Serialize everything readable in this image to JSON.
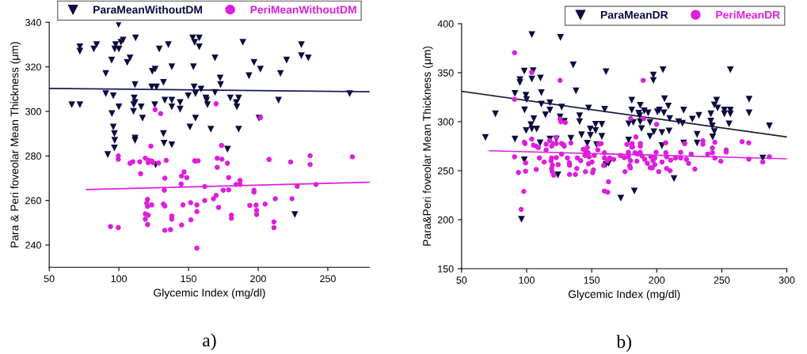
{
  "chart_data": [
    {
      "type": "scatter",
      "xlabel": "Glycemic Index (mg/dl)",
      "ylabel": "Para & Peri foveolar Mean Thickness (μm)",
      "xlim": [
        50,
        280
      ],
      "xticks": [
        50,
        100,
        150,
        200,
        250
      ],
      "ylim": [
        230,
        340
      ],
      "yticks": [
        240,
        260,
        280,
        300,
        320,
        340
      ],
      "grid": false,
      "legend": "top",
      "annotations": [
        "a)"
      ],
      "series": [
        {
          "name": "ParaMeanWithoutDM",
          "color": "#0b0b3f",
          "marker": "triangle",
          "x": [
            66.2,
            72,
            72,
            72,
            82,
            84,
            90.6,
            90.6,
            92,
            94.8,
            96,
            95,
            96,
            96.8,
            97,
            96.8,
            97.7,
            97,
            99.8,
            100,
            100,
            101.5,
            103,
            108,
            106,
            112,
            111.6,
            111,
            110.7,
            110.5,
            111.6,
            111.6,
            111.6,
            116,
            117,
            125.8,
            124,
            126,
            123.6,
            127,
            126.4,
            129,
            132,
            133,
            132,
            132.4,
            135.5,
            138,
            138,
            138,
            138,
            144,
            144,
            149.8,
            151,
            153,
            153.5,
            155,
            154.4,
            157.7,
            157.7,
            154,
            155,
            159,
            169,
            172.7,
            173,
            169,
            162.5,
            163.6,
            163,
            166,
            189,
            197,
            201.6,
            193.4,
            216,
            220.4,
            231,
            231,
            236,
            180,
            186,
            184.3,
            184.7,
            186,
            178,
            200.6,
            214.6,
            226.3,
            265.7
          ],
          "values": [
            303,
            303,
            329,
            327,
            328,
            330,
            317,
            308,
            280.6,
            323,
            307,
            299,
            293,
            290,
            287,
            283.6,
            330,
            328,
            339,
            328,
            302,
            331,
            332,
            324,
            322,
            333,
            312,
            306,
            303,
            300,
            304,
            288,
            287,
            302,
            297,
            303,
            318,
            319,
            311,
            311,
            276,
            328,
            313,
            305,
            290,
            285.7,
            330,
            320,
            305,
            302,
            285,
            304,
            301,
            307,
            293,
            333,
            320,
            297,
            331,
            333,
            329,
            311,
            308,
            310,
            324,
            315,
            312,
            308.5,
            306,
            303,
            305,
            292,
            331,
            322,
            319,
            316,
            317,
            323,
            330,
            325,
            324,
            306,
            306,
            304,
            302,
            292,
            283,
            297,
            305,
            253.7,
            308
          ]
        },
        {
          "name": "PeriMeanWithoutDM",
          "color": "#dd1fdd",
          "marker": "circle",
          "x": [
            126,
            130,
            123,
            99.6,
            99.6,
            108,
            110,
            115,
            115.6,
            119,
            121.6,
            121,
            123.6,
            124.4,
            128.5,
            134,
            133,
            132.6,
            145,
            146.8,
            148.7,
            144.7,
            120.6,
            120,
            120.6,
            123.6,
            119,
            121,
            119,
            120.6,
            94,
            99.6,
            132,
            133,
            138,
            138,
            133,
            137,
            146,
            145,
            151.5,
            151.7,
            156,
            156,
            156,
            155,
            169.8,
            201.7,
            173.7,
            170.6,
            174,
            177.9,
            154.4,
            156.9,
            170.6,
            178.8,
            187,
            184.2,
            187,
            161.6,
            174.9,
            178.8,
            169.8,
            167.9,
            161.6,
            197,
            197,
            171.6,
            180.8,
            180.8,
            194,
            198.5,
            198.9,
            198.9,
            205,
            212.3,
            224.3,
            211.3,
            211.3,
            207.8,
            223.3,
            237.3,
            237.3,
            267.6,
            228,
            241.5
          ],
          "values": [
            300.8,
            299,
            284.4,
            280,
            278.5,
            276.7,
            277.4,
            277.4,
            272,
            279,
            278,
            277,
            277.7,
            277,
            276.8,
            278,
            270,
            264.6,
            271,
            272.8,
            270.3,
            267.4,
            260.5,
            258.8,
            257.3,
            258,
            254,
            253.4,
            251.6,
            249.2,
            248.3,
            247.8,
            258.4,
            257.5,
            253,
            251.6,
            246.6,
            246.9,
            258,
            249,
            259,
            251.3,
            258,
            255,
            238.6,
            277.7,
            303.4,
            297.2,
            284.7,
            279,
            278.5,
            276.7,
            277.8,
            277.8,
            274.9,
            270.3,
            269,
            267.2,
            267.2,
            266.3,
            264.6,
            264.8,
            262.3,
            260.8,
            260,
            264.6,
            263.7,
            256.9,
            253.4,
            252,
            257.8,
            257.9,
            255.5,
            253.7,
            258.4,
            260.8,
            260.8,
            250.4,
            247.8,
            278.4,
            277.3,
            280.1,
            276.1,
            279.6,
            266.4,
            267.2
          ]
        },
        {
          "type": "line",
          "color": "#1a1a5a",
          "x": [
            50,
            280
          ],
          "values": [
            310.3,
            308.8
          ]
        },
        {
          "type": "line",
          "color": "#dd1fdd",
          "x": [
            76.7,
            280
          ],
          "values": [
            264.9,
            268.2
          ]
        }
      ]
    },
    {
      "type": "scatter",
      "xlabel": "Glycemic Index (mg/dl)",
      "ylabel": "Para&Peri foveolar Mean Thickness (μm)",
      "xlim": [
        50,
        300
      ],
      "xticks": [
        50,
        100,
        150,
        200,
        250,
        300
      ],
      "ylim": [
        150,
        400
      ],
      "yticks": [
        150,
        200,
        250,
        300,
        350,
        400
      ],
      "grid": false,
      "legend": "top right",
      "annotations": [
        "b)"
      ],
      "series": [
        {
          "name": "ParaMeanDR",
          "color": "#0b0b3f",
          "marker": "triangle",
          "x": [
            68.3,
            76,
            91,
            91,
            98.2,
            94.8,
            94.8,
            99.4,
            100,
            98.4,
            99.6,
            98.2,
            96,
            104,
            105,
            104,
            104,
            105.5,
            107.7,
            103.3,
            110.4,
            110.6,
            111.3,
            111.3,
            114.5,
            117.9,
            117.9,
            117.9,
            122.8,
            124,
            126,
            126.9,
            125.7,
            129,
            134,
            135.8,
            137.9,
            140.7,
            140.7,
            142.2,
            146.6,
            147.6,
            148.9,
            149,
            153,
            153,
            153.7,
            157.8,
            157.8,
            161,
            161,
            160,
            163,
            180.8,
            180.8,
            178.5,
            182,
            178.4,
            187.3,
            186.2,
            186.9,
            187.3,
            188.3,
            190.4,
            193.4,
            194.8,
            197.4,
            197.4,
            197.8,
            194.8,
            200.5,
            202,
            205.5,
            204.8,
            206,
            208.9,
            204,
            209.5,
            204,
            210,
            213.3,
            182.8,
            172.4,
            216.8,
            219.8,
            220.7,
            220.7,
            227.4,
            231,
            231,
            232.4,
            241.6,
            241.6,
            242.7,
            243,
            244.3,
            244.3,
            246,
            246.8,
            252,
            252,
            256.6,
            256.6,
            255.6,
            256.6,
            271,
            271,
            286.6,
            281.5
          ],
          "values": [
            283.9,
            308,
            328.8,
            282.3,
            351.6,
            343,
            340,
            327,
            322.6,
            312,
            291,
            261,
            200.5,
            389,
            352,
            343.5,
            292.5,
            303,
            292.5,
            297,
            278.5,
            344.6,
            329.6,
            318,
            307,
            319.4,
            311.8,
            282.3,
            282.3,
            245.7,
            386,
            315,
            304.8,
            300.3,
            283,
            358,
            331.5,
            306,
            300,
            286.6,
            278,
            314,
            292.5,
            286,
            297.3,
            291,
            276.6,
            297.3,
            285,
            256.2,
            351,
            312.6,
            257.5,
            322,
            311.8,
            297.8,
            299.2,
            281.2,
            316.7,
            308.6,
            306,
            300,
            293,
            311,
            309,
            299.2,
            347.6,
            342.2,
            289.8,
            285,
            310,
            311.8,
            309,
            353,
            323.4,
            316,
            289,
            290.6,
            275.5,
            303.2,
            242,
            229.3,
            222,
            300,
            298.4,
            311.8,
            278.2,
            302.7,
            287,
            278.2,
            306.5,
            308,
            300.5,
            295.7,
            284.4,
            290,
            317.2,
            322,
            314,
            311.8,
            308,
            311.8,
            308,
            297.8,
            353,
            323,
            309,
            295.7,
            262.9
          ]
        },
        {
          "name": "PeriMeanDR",
          "color": "#dd1fdd",
          "marker": "circle",
          "x": [
            90.7,
            90.7,
            90.7,
            93.7,
            98.2,
            98.8,
            99.2,
            99.2,
            97.8,
            95.8,
            103.9,
            103.9,
            105.3,
            107.4,
            109,
            107.4,
            109.8,
            115,
            115,
            113.5,
            117.7,
            119.2,
            120.4,
            119.2,
            118.8,
            119.8,
            119.2,
            119.6,
            120.8,
            122.8,
            122.8,
            122.8,
            124.2,
            125.7,
            125.7,
            126.3,
            126.9,
            128.5,
            129.7,
            128.9,
            126.9,
            131.4,
            132.8,
            133,
            134,
            133,
            139,
            138.6,
            137.5,
            141.5,
            143.5,
            144.8,
            145.6,
            146.6,
            147.2,
            148,
            145.2,
            147.6,
            150.3,
            150.7,
            152,
            151.3,
            154.7,
            155.4,
            157.2,
            159.2,
            159.8,
            159.8,
            161.9,
            162.9,
            159.8,
            162.3,
            189.6,
            180,
            190,
            199.9,
            206.9,
            221.5,
            181,
            184,
            181.5,
            177.1,
            180.8,
            187.4,
            187.4,
            163.9,
            166.9,
            172,
            175,
            178.2,
            178.2,
            179.8,
            183.3,
            185.3,
            187.3,
            188.8,
            184.7,
            190.8,
            192.8,
            195.5,
            197.1,
            198.5,
            198.5,
            196.5,
            195,
            199.5,
            201.5,
            204.1,
            207,
            207.6,
            207.6,
            210.3,
            210.7,
            214.4,
            218.4,
            218.4,
            222.8,
            224.5,
            226.5,
            229.3,
            235.5,
            235.5,
            239.2,
            242.8,
            242.8,
            244.7,
            244.7,
            249.3,
            253.4,
            253.4,
            265.6,
            270.7,
            270.7,
            281.5,
            286.6,
            175.6,
            179.8,
            179.2
          ],
          "values": [
            370.4,
            322.8,
            264.2,
            248.1,
            279,
            277.7,
            258,
            249.5,
            228.8,
            210.5,
            350.3,
            282.3,
            276,
            275,
            273.7,
            251.3,
            263,
            271.2,
            277.1,
            258.9,
            280.9,
            275,
            277.7,
            263,
            260.2,
            255.6,
            252.2,
            249,
            245.4,
            277.7,
            283.9,
            263.4,
            256.2,
            342.2,
            302.7,
            300,
            277.7,
            276.3,
            299.2,
            275,
            267,
            263,
            258,
            255.6,
            278.2,
            246.2,
            263,
            252.2,
            246.2,
            260.2,
            271.8,
            265.6,
            269.6,
            273.7,
            268.3,
            264.2,
            249,
            257,
            258.9,
            248,
            265.6,
            250.8,
            271.2,
            277,
            277.7,
            255.4,
            268.3,
            263,
            260.2,
            238.7,
            229.3,
            228,
            342.2,
            303.2,
            303.2,
            297.3,
            278.5,
            277.7,
            277.7,
            284.4,
            274.2,
            276.9,
            274.2,
            277.7,
            275,
            263,
            261.6,
            265.6,
            263.4,
            268.8,
            264.2,
            260.2,
            268.3,
            266.9,
            268.8,
            265,
            259.7,
            261.6,
            257.5,
            264.2,
            260.2,
            262.9,
            256.2,
            252.8,
            253,
            268.8,
            249,
            258.9,
            268.3,
            264.2,
            252.2,
            250,
            260.8,
            263,
            268.8,
            263,
            261.6,
            257.5,
            266.9,
            251.6,
            280.4,
            277,
            266.9,
            268.3,
            273.2,
            279,
            263,
            259.7,
            271.2,
            269.1,
            279.6,
            278.5,
            261.8,
            258.9,
            264.2,
            249,
            252.8,
            255
          ]
        },
        {
          "type": "line",
          "color": "#1a1a3a",
          "x": [
            50,
            300
          ],
          "values": [
            331,
            284.4
          ]
        },
        {
          "type": "line",
          "color": "#dd1fdd",
          "x": [
            71.4,
            300
          ],
          "values": [
            270.4,
            262.1
          ]
        }
      ]
    }
  ]
}
